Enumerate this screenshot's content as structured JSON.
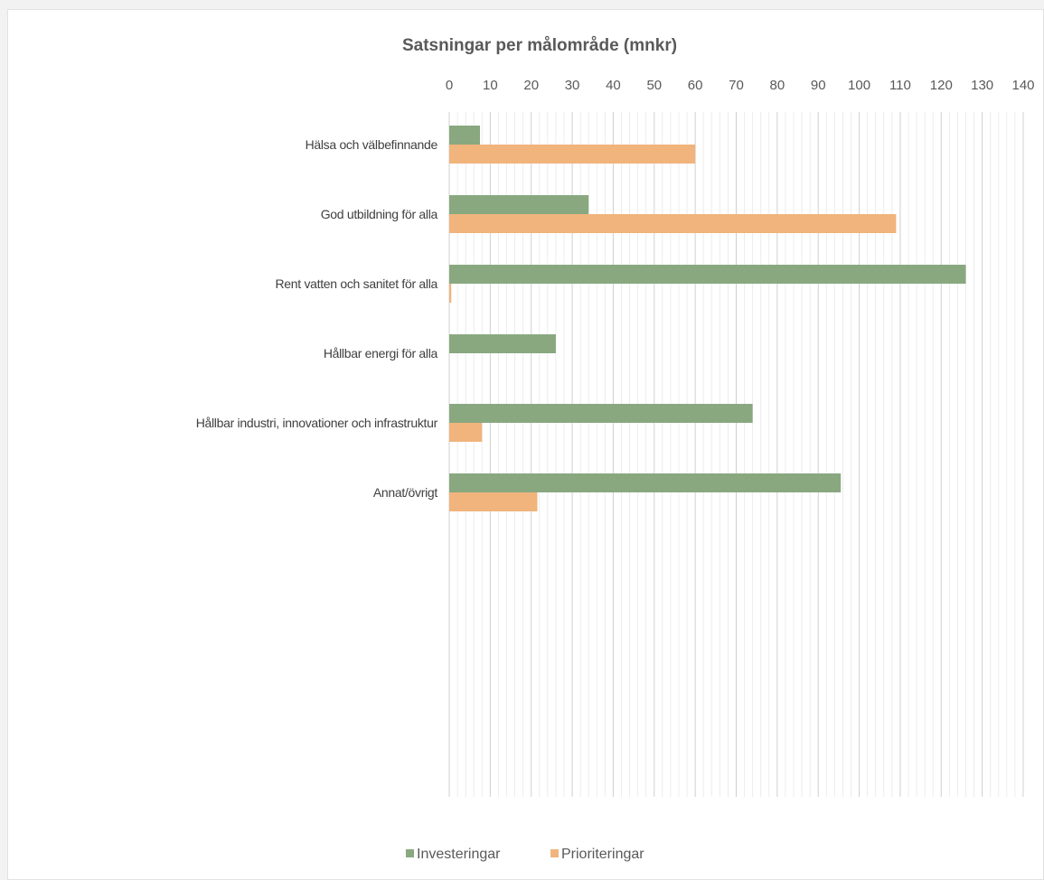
{
  "chart_data": {
    "type": "bar",
    "orientation": "horizontal",
    "title": "Satsningar per målområde (mnkr)",
    "xlabel": "",
    "ylabel": "",
    "xlim": [
      0,
      140
    ],
    "x_ticks": [
      0,
      10,
      20,
      30,
      40,
      50,
      60,
      70,
      80,
      90,
      100,
      110,
      120,
      130,
      140
    ],
    "x_axis_position": "top",
    "grid": true,
    "legend_position": "bottom",
    "categories": [
      "Hälsa och välbefinnande",
      "God utbildning för alla",
      "Rent vatten och sanitet för alla",
      "Hållbar energi för alla",
      "Hållbar industri, innovationer och infrastruktur",
      "Annat/övrigt"
    ],
    "series": [
      {
        "name": "Investeringar",
        "color": "#89a880",
        "values": [
          7.5,
          34,
          126,
          26,
          74,
          95.5
        ]
      },
      {
        "name": "Prioriteringar",
        "color": "#f0b47c",
        "values": [
          60,
          109,
          0.5,
          0,
          8,
          21.5
        ]
      }
    ]
  }
}
